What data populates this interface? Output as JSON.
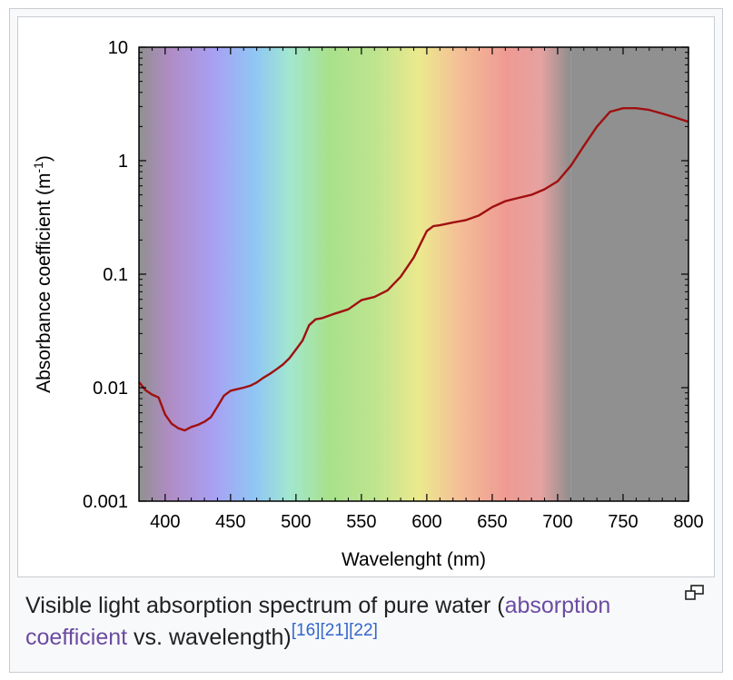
{
  "chart_data": {
    "type": "line",
    "xlabel": "Wavelenght (nm)",
    "ylabel": "Absorbance coefficient (m",
    "ylabel_sup": "-1",
    "ylabel_close": ")",
    "x_ticks": [
      400,
      450,
      500,
      550,
      600,
      650,
      700,
      750,
      800
    ],
    "y_ticks": [
      {
        "value": 0.001,
        "label": "0.001"
      },
      {
        "value": 0.01,
        "label": "0.01"
      },
      {
        "value": 0.1,
        "label": "0.1"
      },
      {
        "value": 1,
        "label": "1"
      },
      {
        "value": 10,
        "label": "10"
      }
    ],
    "xlim": [
      380,
      800
    ],
    "ylim": [
      0.001,
      10
    ],
    "yscale": "log",
    "grid": false,
    "background": "visible spectrum gradient (violet to red), gray outside 380-710 nm",
    "line_color": "#a01010",
    "series": [
      {
        "x": [
          380,
          385,
          390,
          395,
          400,
          405,
          410,
          415,
          420,
          425,
          430,
          435,
          440,
          445,
          450,
          455,
          460,
          465,
          470,
          475,
          480,
          485,
          490,
          495,
          500,
          505,
          510,
          515,
          520,
          530,
          540,
          550,
          560,
          570,
          580,
          590,
          600,
          605,
          610,
          620,
          630,
          640,
          650,
          660,
          670,
          680,
          690,
          700,
          710,
          720,
          730,
          740,
          750,
          760,
          770,
          780,
          790,
          800
        ],
        "y": [
          0.0112,
          0.0095,
          0.0087,
          0.0082,
          0.0058,
          0.0048,
          0.0044,
          0.0042,
          0.0045,
          0.0047,
          0.005,
          0.0055,
          0.0068,
          0.0085,
          0.0094,
          0.0097,
          0.01,
          0.0104,
          0.0111,
          0.0122,
          0.0132,
          0.0145,
          0.016,
          0.0182,
          0.0217,
          0.026,
          0.0355,
          0.04,
          0.041,
          0.045,
          0.049,
          0.059,
          0.063,
          0.072,
          0.095,
          0.14,
          0.24,
          0.265,
          0.27,
          0.285,
          0.3,
          0.33,
          0.39,
          0.44,
          0.47,
          0.5,
          0.56,
          0.66,
          0.9,
          1.35,
          2.0,
          2.7,
          2.9,
          2.9,
          2.8,
          2.6,
          2.4,
          2.2
        ]
      }
    ]
  },
  "caption": {
    "text_before": "Visible light absorption spectrum of pure water (",
    "link_text": "absorption coefficient",
    "text_after": " vs. wavelength)",
    "refs": [
      "[16]",
      "[21]",
      "[22]"
    ]
  },
  "icons": {
    "enlarge": "magnify-clip-icon"
  }
}
